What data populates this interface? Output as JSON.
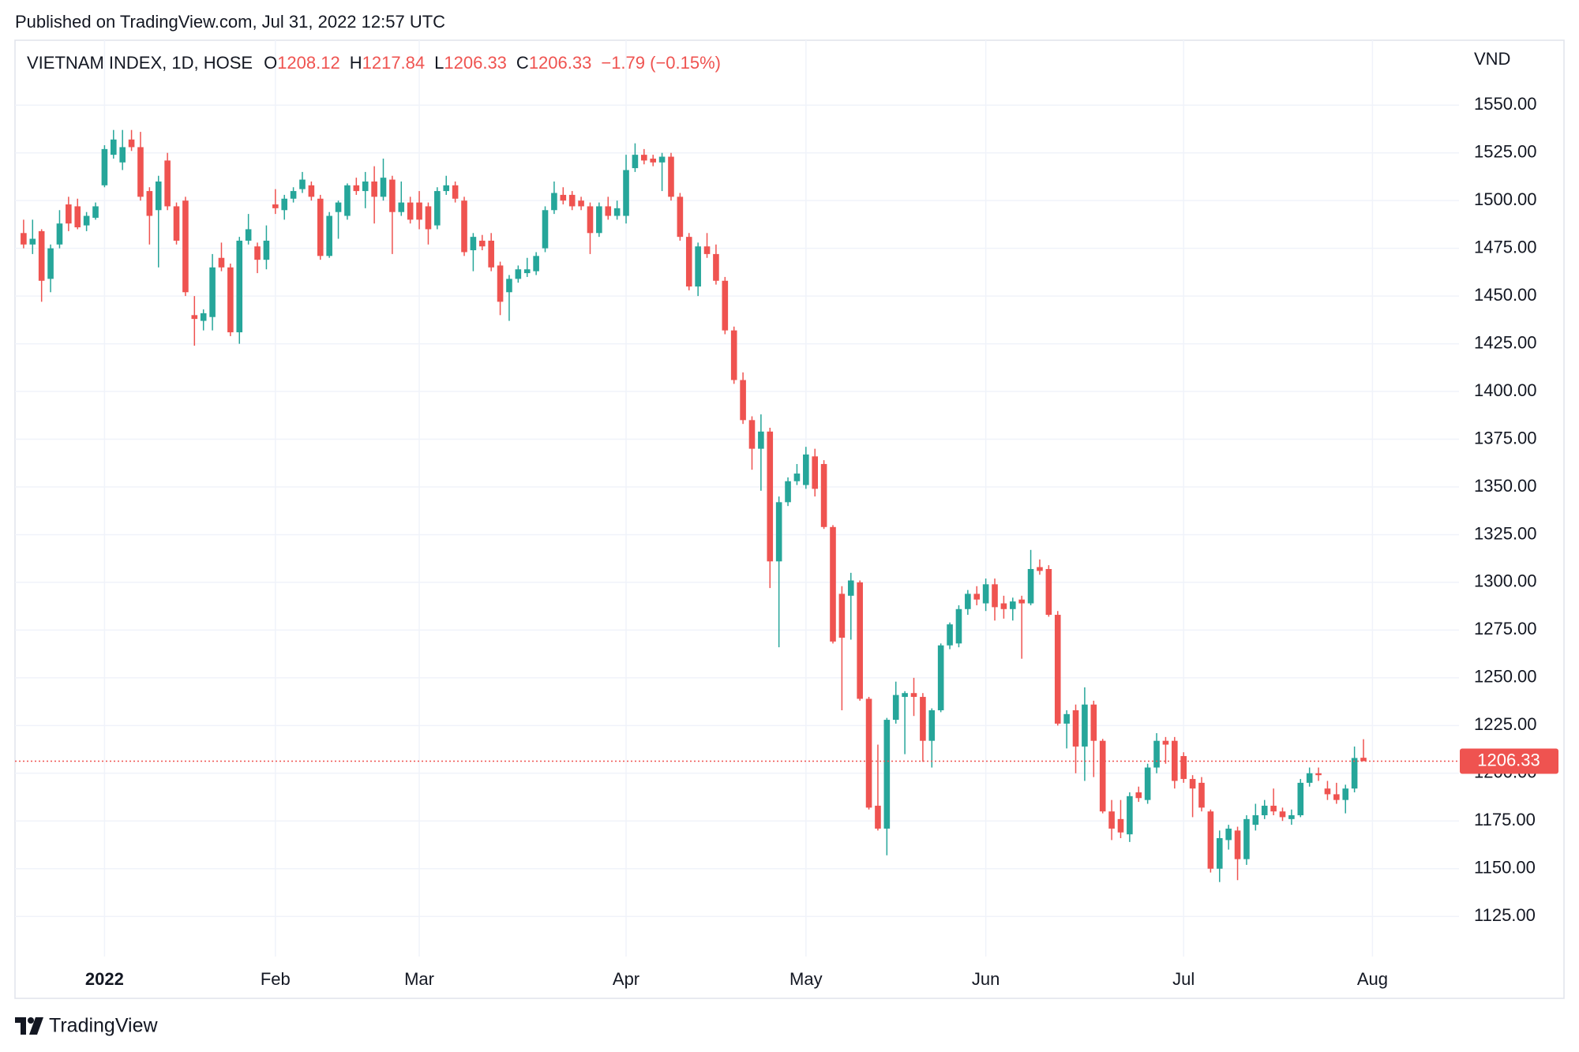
{
  "header": {
    "published": "Published on TradingView.com, Jul 31, 2022 12:57 UTC"
  },
  "footer": {
    "brand": "TradingView"
  },
  "chart_data": {
    "type": "candlestick",
    "symbol": "VIETNAM INDEX, 1D, HOSE",
    "ohlc_labels": [
      "O",
      "H",
      "L",
      "C"
    ],
    "change": "−1.79 (−0.15%)",
    "unit": "VND",
    "up_color": "#26a69a",
    "down_color": "#ef5350",
    "grid": true,
    "ylim": [
      1104,
      1584
    ],
    "yticks": [
      {
        "value": 1125,
        "label": "1125.00"
      },
      {
        "value": 1150,
        "label": "1150.00"
      },
      {
        "value": 1175,
        "label": "1175.00"
      },
      {
        "value": 1200,
        "label": "1200.00"
      },
      {
        "value": 1225,
        "label": "1225.00"
      },
      {
        "value": 1250,
        "label": "1250.00"
      },
      {
        "value": 1275,
        "label": "1275.00"
      },
      {
        "value": 1300,
        "label": "1300.00"
      },
      {
        "value": 1325,
        "label": "1325.00"
      },
      {
        "value": 1350,
        "label": "1350.00"
      },
      {
        "value": 1375,
        "label": "1375.00"
      },
      {
        "value": 1400,
        "label": "1400.00"
      },
      {
        "value": 1425,
        "label": "1425.00"
      },
      {
        "value": 1450,
        "label": "1450.00"
      },
      {
        "value": 1475,
        "label": "1475.00"
      },
      {
        "value": 1500,
        "label": "1500.00"
      },
      {
        "value": 1525,
        "label": "1525.00"
      },
      {
        "value": 1550,
        "label": "1550.00"
      }
    ],
    "categories": [
      null,
      null,
      null,
      null,
      null,
      null,
      null,
      null,
      null,
      "2022",
      null,
      null,
      null,
      null,
      null,
      null,
      null,
      null,
      null,
      null,
      null,
      null,
      null,
      null,
      null,
      null,
      null,
      null,
      "Feb",
      null,
      null,
      null,
      null,
      null,
      null,
      null,
      null,
      null,
      null,
      null,
      null,
      null,
      null,
      null,
      "Mar",
      null,
      null,
      null,
      null,
      null,
      null,
      null,
      null,
      null,
      null,
      null,
      null,
      null,
      null,
      null,
      null,
      null,
      null,
      null,
      null,
      null,
      null,
      "Apr",
      null,
      null,
      null,
      null,
      null,
      null,
      null,
      null,
      null,
      null,
      null,
      null,
      null,
      null,
      null,
      null,
      null,
      null,
      null,
      "May",
      null,
      null,
      null,
      null,
      null,
      null,
      null,
      null,
      null,
      null,
      null,
      null,
      null,
      null,
      null,
      null,
      null,
      null,
      null,
      "Jun",
      null,
      null,
      null,
      null,
      null,
      null,
      null,
      null,
      null,
      null,
      null,
      null,
      null,
      null,
      null,
      null,
      null,
      null,
      null,
      null,
      null,
      "Jul",
      null,
      null,
      null,
      null,
      null,
      null,
      null,
      null,
      null,
      null,
      null,
      null,
      null,
      null,
      null,
      null,
      null,
      null,
      null,
      null,
      "Aug"
    ],
    "open": [
      1483,
      1477,
      1484,
      1459,
      1477,
      1498,
      1497,
      1487,
      1491,
      1508,
      1524,
      1520,
      1532,
      1528,
      1505,
      1495,
      1521,
      1497,
      1500,
      1440,
      1437,
      1439,
      1470,
      1465,
      1431,
      1479,
      1476,
      1469,
      1498,
      1495,
      1501,
      1506,
      1508,
      1501,
      1471,
      1494,
      1492,
      1508,
      1505,
      1510,
      1502,
      1511,
      1494,
      1499,
      1499,
      1497,
      1487,
      1505,
      1508,
      1500,
      1474,
      1479,
      1479,
      1466,
      1452,
      1459,
      1462,
      1463,
      1475,
      1495,
      1503,
      1503,
      1500,
      1497,
      1483,
      1497,
      1492,
      1492,
      1517,
      1524,
      1522,
      1520,
      1523,
      1502,
      1481,
      1455,
      1476,
      1472,
      1458,
      1432,
      1406,
      1385,
      1370,
      1379,
      1311,
      1342,
      1353,
      1351,
      1366,
      1362,
      1329,
      1294,
      1293,
      1300,
      1239,
      1183,
      1171,
      1228,
      1240,
      1242,
      1240,
      1217,
      1233,
      1267,
      1268,
      1286,
      1294,
      1289,
      1299,
      1289,
      1286,
      1291,
      1289,
      1308,
      1307,
      1283,
      1226,
      1233,
      1214,
      1236,
      1217,
      1180,
      1176,
      1168,
      1190,
      1186,
      1203,
      1217,
      1217,
      1209,
      1197,
      1195,
      1180,
      1150,
      1165,
      1170,
      1155,
      1173,
      1178,
      1183,
      1180,
      1176,
      1178,
      1195,
      1200,
      1192,
      1189,
      1186,
      1192,
      1208.12,
      null
    ],
    "high": [
      1490,
      1490,
      1485,
      1477,
      1495,
      1502,
      1501,
      1494,
      1499,
      1529,
      1537,
      1537,
      1537,
      1536,
      1507,
      1513,
      1525,
      1499,
      1502,
      1450,
      1443,
      1472,
      1478,
      1467,
      1481,
      1493,
      1478,
      1487,
      1506,
      1503,
      1507,
      1515,
      1510,
      1503,
      1494,
      1500,
      1509,
      1512,
      1515,
      1518,
      1522,
      1513,
      1510,
      1502,
      1505,
      1499,
      1507,
      1513,
      1510,
      1502,
      1483,
      1482,
      1483,
      1468,
      1461,
      1466,
      1470,
      1473,
      1497,
      1510,
      1507,
      1505,
      1502,
      1499,
      1499,
      1502,
      1500,
      1524,
      1530,
      1527,
      1524,
      1525,
      1525,
      1504,
      1483,
      1478,
      1483,
      1477,
      1460,
      1434,
      1410,
      1387,
      1388,
      1381,
      1345,
      1355,
      1362,
      1371,
      1370,
      1364,
      1330,
      1298,
      1305,
      1301,
      1240,
      1215,
      1229,
      1248,
      1243,
      1250,
      1242,
      1234,
      1268,
      1279,
      1288,
      1296,
      1298,
      1302,
      1302,
      1293,
      1292,
      1293,
      1317,
      1312,
      1309,
      1285,
      1233,
      1236,
      1245,
      1238,
      1218,
      1186,
      1186,
      1190,
      1193,
      1205,
      1221,
      1219,
      1219,
      1211,
      1199,
      1198,
      1181,
      1170,
      1173,
      1172,
      1178,
      1184,
      1186,
      1192,
      1182,
      1181,
      1197,
      1203,
      1203,
      1196,
      1195,
      1194,
      1214,
      1217.84,
      null
    ],
    "low": [
      1475,
      1472,
      1447,
      1452,
      1475,
      1484,
      1485,
      1484,
      1490,
      1507,
      1522,
      1516,
      1526,
      1500,
      1477,
      1465,
      1495,
      1477,
      1450,
      1424,
      1432,
      1432,
      1463,
      1429,
      1425,
      1477,
      1462,
      1464,
      1493,
      1490,
      1499,
      1504,
      1500,
      1469,
      1470,
      1480,
      1490,
      1503,
      1496,
      1488,
      1500,
      1472,
      1492,
      1488,
      1485,
      1477,
      1485,
      1503,
      1499,
      1471,
      1463,
      1474,
      1463,
      1440,
      1437,
      1457,
      1460,
      1461,
      1473,
      1493,
      1498,
      1495,
      1495,
      1472,
      1481,
      1490,
      1490,
      1488,
      1515,
      1519,
      1518,
      1505,
      1500,
      1479,
      1453,
      1450,
      1470,
      1456,
      1430,
      1404,
      1383,
      1359,
      1348,
      1297,
      1266,
      1340,
      1351,
      1349,
      1345,
      1328,
      1268,
      1233,
      1270,
      1238,
      1181,
      1170,
      1157,
      1226,
      1210,
      1230,
      1206,
      1203,
      1232,
      1265,
      1266,
      1283,
      1288,
      1285,
      1280,
      1281,
      1280,
      1260,
      1288,
      1304,
      1282,
      1225,
      1213,
      1200,
      1196,
      1198,
      1179,
      1165,
      1166,
      1164,
      1185,
      1184,
      1200,
      1205,
      1192,
      1195,
      1177,
      1180,
      1148,
      1143,
      1160,
      1144,
      1152,
      1170,
      1176,
      1178,
      1175,
      1173,
      1177,
      1193,
      1196,
      1186,
      1184,
      1179,
      1190,
      1206.33,
      null
    ],
    "close": [
      1477,
      1480,
      1458,
      1475,
      1488,
      1488,
      1486,
      1492,
      1497,
      1527,
      1532,
      1528,
      1528,
      1502,
      1492,
      1510,
      1497,
      1479,
      1452,
      1438,
      1441,
      1465,
      1465,
      1431,
      1479,
      1485,
      1469,
      1479,
      1496,
      1501,
      1505,
      1511,
      1502,
      1471,
      1492,
      1499,
      1508,
      1505,
      1510,
      1502,
      1512,
      1494,
      1499,
      1490,
      1490,
      1485,
      1505,
      1508,
      1501,
      1473,
      1481,
      1476,
      1465,
      1447,
      1459,
      1464,
      1464,
      1471,
      1495,
      1504,
      1500,
      1497,
      1497,
      1483,
      1497,
      1492,
      1496,
      1516,
      1524,
      1521,
      1520,
      1523,
      1502,
      1481,
      1455,
      1476,
      1472,
      1458,
      1432,
      1406,
      1385,
      1370,
      1379,
      1311,
      1342,
      1353,
      1357,
      1367,
      1349,
      1329,
      1269,
      1271,
      1301,
      1239,
      1182,
      1171,
      1228,
      1241,
      1242,
      1240,
      1217,
      1233,
      1267,
      1278,
      1286,
      1294,
      1291,
      1299,
      1287,
      1286,
      1290,
      1289,
      1307,
      1306,
      1283,
      1226,
      1231,
      1214,
      1236,
      1217,
      1180,
      1171,
      1169,
      1188,
      1187,
      1203,
      1217,
      1215,
      1196,
      1197,
      1192,
      1182,
      1150,
      1166,
      1171,
      1155,
      1176,
      1178,
      1183,
      1180,
      1177,
      1178,
      1195,
      1200,
      1199,
      1189,
      1186,
      1192,
      1208,
      1206.33,
      null
    ]
  }
}
